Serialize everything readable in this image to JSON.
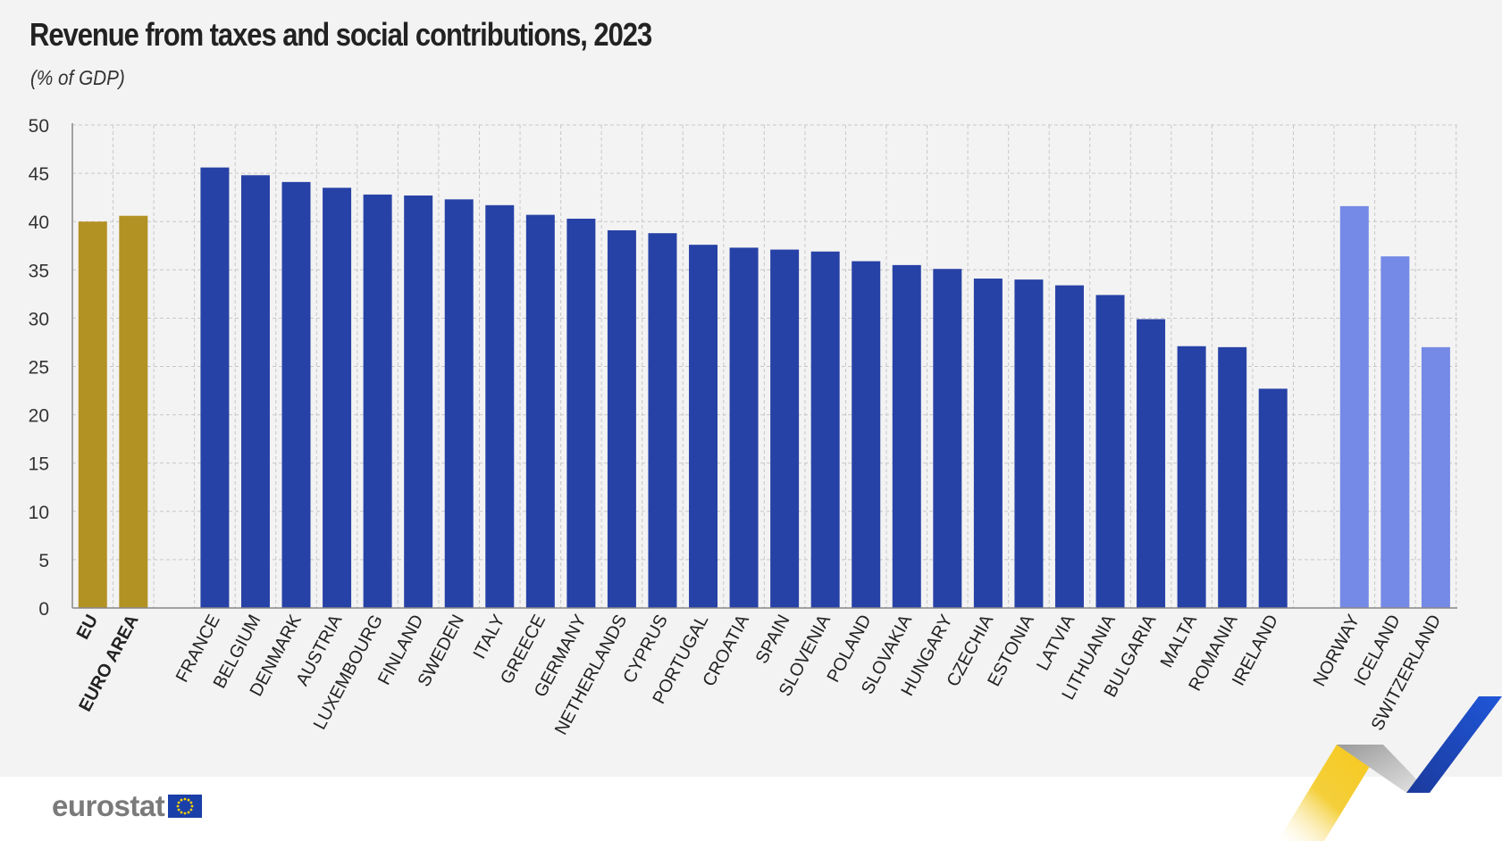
{
  "title": "Revenue from taxes and social contributions, 2023",
  "subtitle": "(% of GDP)",
  "logo_text": "eurostat",
  "colors": {
    "aggregate": "#b39224",
    "member": "#2742a6",
    "efta": "#7589e6",
    "grid": "#c8c8c8",
    "background": "#f3f3f3",
    "footer": "#ffffff"
  },
  "chart_data": {
    "type": "bar",
    "title": "Revenue from taxes and social contributions, 2023",
    "ylabel": "(% of GDP)",
    "ylim": [
      0,
      50
    ],
    "yticks": [
      0,
      5,
      10,
      15,
      20,
      25,
      30,
      35,
      40,
      45,
      50
    ],
    "grid": true,
    "groups": [
      {
        "group": "aggregate",
        "bold_labels": true,
        "categories": [
          "EU",
          "EURO AREA"
        ],
        "values": [
          40.0,
          40.6
        ]
      },
      {
        "group": "member",
        "bold_labels": false,
        "categories": [
          "FRANCE",
          "BELGIUM",
          "DENMARK",
          "AUSTRIA",
          "LUXEMBOURG",
          "FINLAND",
          "SWEDEN",
          "ITALY",
          "GREECE",
          "GERMANY",
          "NETHERLANDS",
          "CYPRUS",
          "PORTUGAL",
          "CROATIA",
          "SPAIN",
          "SLOVENIA",
          "POLAND",
          "SLOVAKIA",
          "HUNGARY",
          "CZECHIA",
          "ESTONIA",
          "LATVIA",
          "LITHUANIA",
          "BULGARIA",
          "MALTA",
          "ROMANIA",
          "IRELAND"
        ],
        "values": [
          45.6,
          44.8,
          44.1,
          43.5,
          42.8,
          42.7,
          42.3,
          41.7,
          40.7,
          40.3,
          39.1,
          38.8,
          37.6,
          37.3,
          37.1,
          36.9,
          35.9,
          35.5,
          35.1,
          34.1,
          34.0,
          33.4,
          32.4,
          29.9,
          27.1,
          27.0,
          22.7
        ]
      },
      {
        "group": "efta",
        "bold_labels": false,
        "categories": [
          "NORWAY",
          "ICELAND",
          "SWITZERLAND"
        ],
        "values": [
          41.6,
          36.4,
          27.0
        ]
      }
    ]
  }
}
